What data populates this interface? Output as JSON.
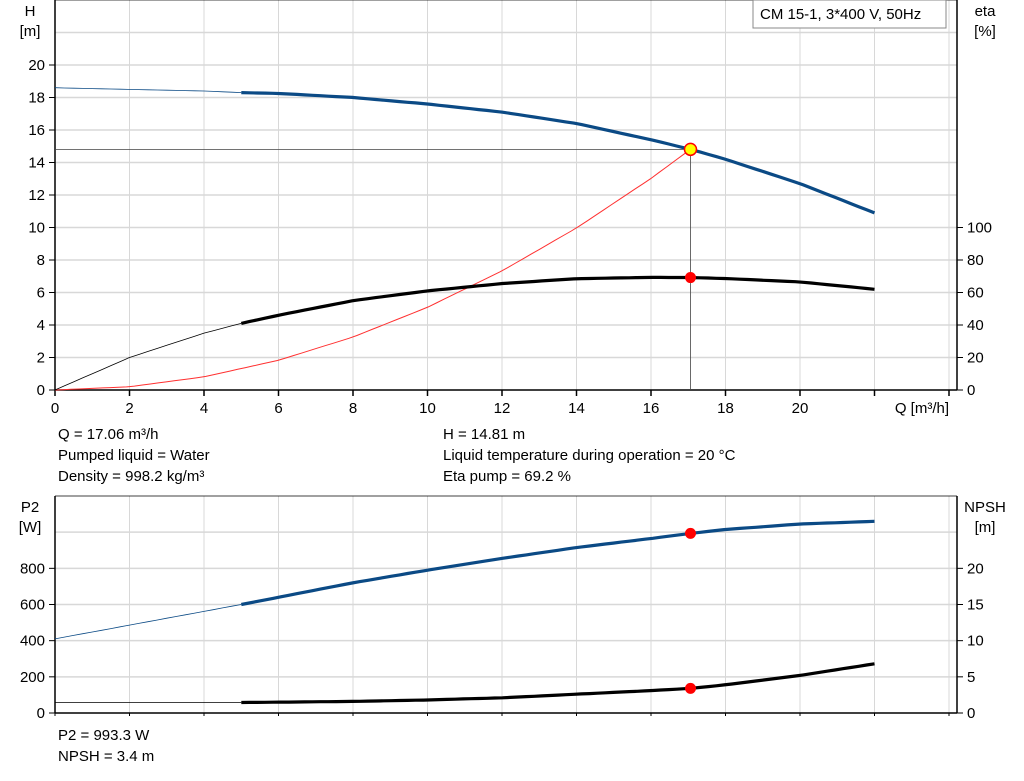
{
  "chart_data": [
    {
      "type": "line",
      "legend": "CM 15-1, 3*400 V, 50Hz",
      "xlabel": "Q [m³/h]",
      "ylabel": [
        "H",
        "[m]"
      ],
      "ylabel_right": [
        "eta",
        "[%]"
      ],
      "xlim": [
        0,
        24
      ],
      "ylim": [
        0,
        24
      ],
      "ylim_right_eta": [
        0,
        240
      ],
      "xticks": [
        0,
        2,
        4,
        6,
        8,
        10,
        12,
        14,
        16,
        18,
        20
      ],
      "yticks": [
        0,
        2,
        4,
        6,
        8,
        10,
        12,
        14,
        16,
        18,
        20
      ],
      "yticks_right": [
        0,
        20,
        40,
        60,
        80,
        100
      ],
      "grid": true,
      "colors": {
        "head": "#0b4a85",
        "eta": "#000000",
        "system": "#ff3030",
        "duty_point": "#ffff00",
        "marker": "#ff0000"
      },
      "series": [
        {
          "key": "head",
          "unit": "m",
          "x": [
            0,
            2,
            4,
            5,
            6,
            8,
            10,
            12,
            14,
            16,
            17.06,
            18,
            20,
            22
          ],
          "y": [
            18.6,
            18.5,
            18.4,
            18.3,
            18.25,
            18.0,
            17.6,
            17.1,
            16.4,
            15.4,
            14.81,
            14.2,
            12.7,
            10.9
          ]
        },
        {
          "key": "eta",
          "unit": "%",
          "x": [
            0,
            2,
            4,
            5,
            6,
            8,
            10,
            12,
            14,
            16,
            17.06,
            18,
            20,
            22
          ],
          "y": [
            0,
            20,
            35,
            41,
            46,
            55,
            61,
            65.5,
            68.5,
            69.3,
            69.2,
            68.6,
            66.5,
            62
          ]
        },
        {
          "key": "system",
          "unit": "m",
          "x": [
            0,
            2,
            4,
            6,
            8,
            10,
            12,
            14,
            16,
            17.06
          ],
          "y": [
            0,
            0.2,
            0.81,
            1.83,
            3.26,
            5.09,
            7.33,
            9.97,
            13.02,
            14.81
          ]
        }
      ],
      "duty_point": {
        "Q": 17.06,
        "H": 14.81,
        "eta": 69.2
      }
    },
    {
      "type": "line",
      "ylabel": [
        "P2",
        "[W]"
      ],
      "ylabel_right": [
        "NPSH",
        "[m]"
      ],
      "xlim": [
        0,
        24
      ],
      "ylim": [
        0,
        1200
      ],
      "ylim_right": [
        0,
        30
      ],
      "yticks": [
        0,
        200,
        400,
        600,
        800
      ],
      "yticks_right": [
        0,
        5,
        10,
        15,
        20
      ],
      "grid": true,
      "colors": {
        "p2": "#0b4a85",
        "npsh": "#000000",
        "marker": "#ff0000"
      },
      "series": [
        {
          "key": "p2",
          "unit": "W",
          "x": [
            0,
            5,
            8,
            10,
            12,
            14,
            16,
            17.06,
            18,
            20,
            22
          ],
          "y": [
            410,
            600,
            720,
            790,
            855,
            915,
            965,
            993.3,
            1015,
            1045,
            1060
          ]
        },
        {
          "key": "npsh",
          "unit": "m",
          "x": [
            0,
            5,
            8,
            10,
            12,
            14,
            16,
            17.06,
            18,
            20,
            22
          ],
          "y": [
            1.45,
            1.45,
            1.6,
            1.8,
            2.1,
            2.6,
            3.1,
            3.4,
            3.9,
            5.2,
            6.8
          ]
        }
      ],
      "duty_point": {
        "Q": 17.06,
        "P2": 993.3,
        "NPSH": 3.4
      }
    }
  ],
  "info_top": {
    "left": [
      "Q = 17.06 m³/h",
      "Pumped liquid = Water",
      "Density = 998.2 kg/m³"
    ],
    "right": [
      "H = 14.81 m",
      "Liquid temperature during operation = 20 °C",
      "Eta pump = 69.2 %"
    ]
  },
  "info_bottom": [
    "P2 = 993.3 W",
    "NPSH = 3.4 m"
  ]
}
